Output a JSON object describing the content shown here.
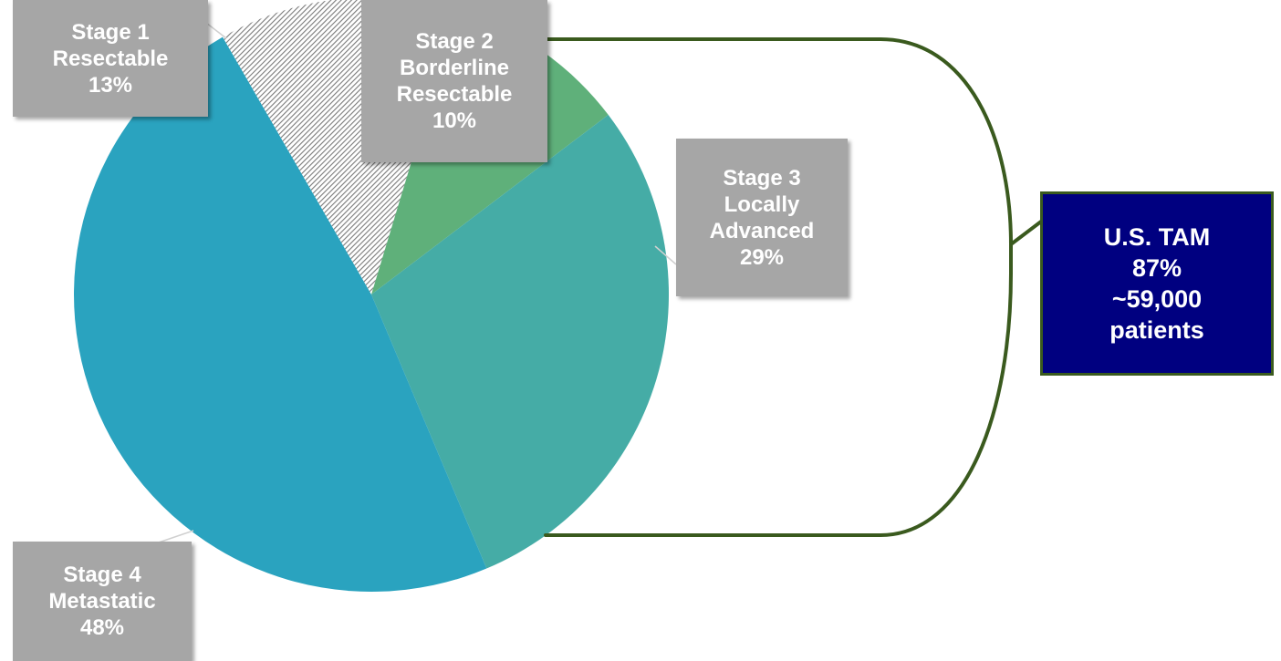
{
  "chart_data": {
    "type": "pie",
    "title": "",
    "slices": [
      {
        "label": [
          "Stage 1",
          "Resectable",
          "13%"
        ],
        "value": 13,
        "color": "#9e9e9e",
        "pattern": "diagonal-hatch"
      },
      {
        "label": [
          "Stage 2",
          "Borderline",
          "Resectable",
          "10%"
        ],
        "value": 10,
        "color": "#5fb07a",
        "pattern": "none"
      },
      {
        "label": [
          "Stage 3",
          "Locally",
          "Advanced",
          "29%"
        ],
        "value": 29,
        "color": "#45aca6",
        "pattern": "none"
      },
      {
        "label": [
          "Stage 4",
          "Metastatic",
          "48%"
        ],
        "value": 48,
        "color": "#2aa3bf",
        "pattern": "none"
      }
    ],
    "bracket": {
      "color": "#3a5a1e",
      "callout": [
        "U.S. TAM",
        "87%",
        "~59,000",
        "patients"
      ],
      "callout_fill": "#000080"
    },
    "label_box_color": "#a6a6a6"
  }
}
